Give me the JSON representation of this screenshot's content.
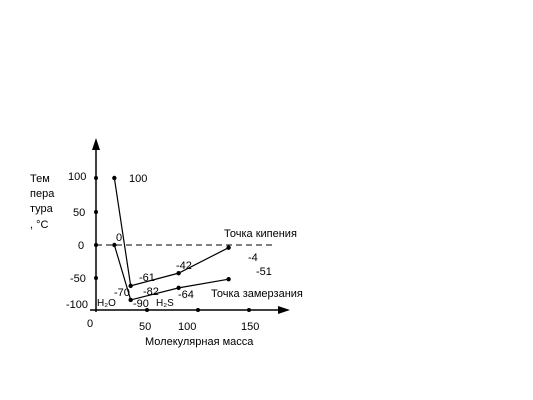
{
  "chart_data": {
    "type": "line",
    "ylabel_lines": [
      "Тем",
      "пера",
      "тура",
      ", °C"
    ],
    "xlabel": "Молекулярная масса",
    "x_ticks": [
      "0",
      "50",
      "100",
      "150"
    ],
    "y_ticks": [
      "100",
      "50",
      "0",
      "-50",
      "-100"
    ],
    "series": [
      {
        "name": "Точка кипения",
        "points": [
          {
            "x": 18,
            "y": 100,
            "label": "100"
          },
          {
            "x": 34,
            "y": -61,
            "label": "-61"
          },
          {
            "x": 81,
            "y": -42,
            "label": "-42"
          },
          {
            "x": 130,
            "y": -4,
            "label": "-4"
          }
        ]
      },
      {
        "name": "Точка замерзания",
        "points": [
          {
            "x": 18,
            "y": 0,
            "label": "0"
          },
          {
            "x": 34,
            "y": -82,
            "label": "-82"
          },
          {
            "x": 81,
            "y": -64,
            "label": "-64"
          },
          {
            "x": 130,
            "y": -51,
            "label": "-51"
          }
        ]
      }
    ],
    "extra_labels": {
      "h2s_boil_second": "-70",
      "h2s_freeze_second": "-90"
    },
    "molecules": [
      "H₂O",
      "H₂S"
    ],
    "dashed_zero_line": true
  }
}
